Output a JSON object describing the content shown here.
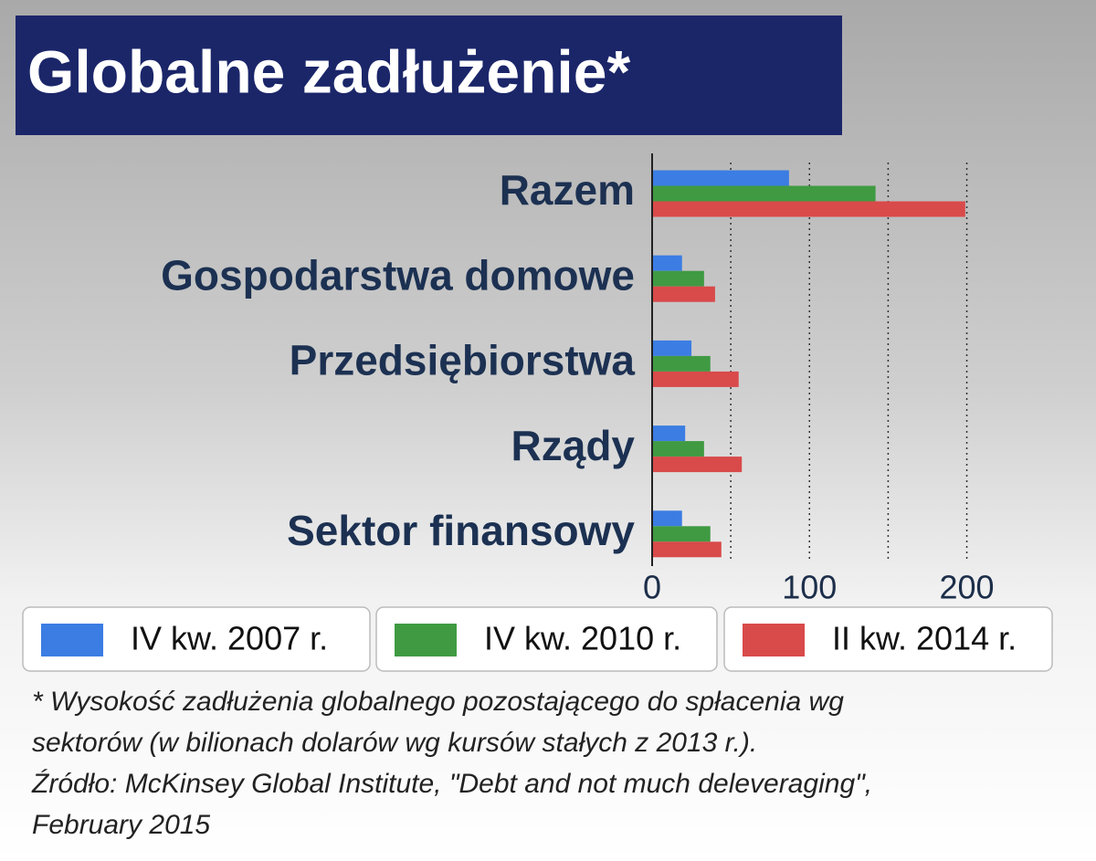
{
  "chart_data": {
    "type": "bar",
    "orientation": "horizontal",
    "title": "Globalne zadłużenie*",
    "categories": [
      "Razem",
      "Gospodarstwa domowe",
      "Przedsiębiorstwa",
      "Rządy",
      "Sektor finansowy"
    ],
    "series": [
      {
        "name": "IV kw. 2007 r.",
        "color": "#3b7de3",
        "values": [
          87,
          19,
          25,
          21,
          19
        ]
      },
      {
        "name": "IV kw. 2010 r.",
        "color": "#3f9a42",
        "values": [
          142,
          33,
          37,
          33,
          37
        ]
      },
      {
        "name": "II kw. 2014 r.",
        "color": "#d94a4a",
        "values": [
          199,
          40,
          55,
          57,
          44
        ]
      }
    ],
    "xlim": [
      0,
      220
    ],
    "xticks": [
      0,
      100,
      200
    ],
    "grid_lines": [
      50,
      100,
      150,
      200
    ],
    "grid": true,
    "legend": "bottom",
    "note": [
      "* Wysokość zadłużenia globalnego pozostającego do spłacenia wg",
      "sektorów (w bilionach dolarów wg kursów stałych z 2013 r.).",
      "Źródło: McKinsey Global Institute, \"Debt and not much deleveraging\",",
      "February 2015"
    ]
  }
}
